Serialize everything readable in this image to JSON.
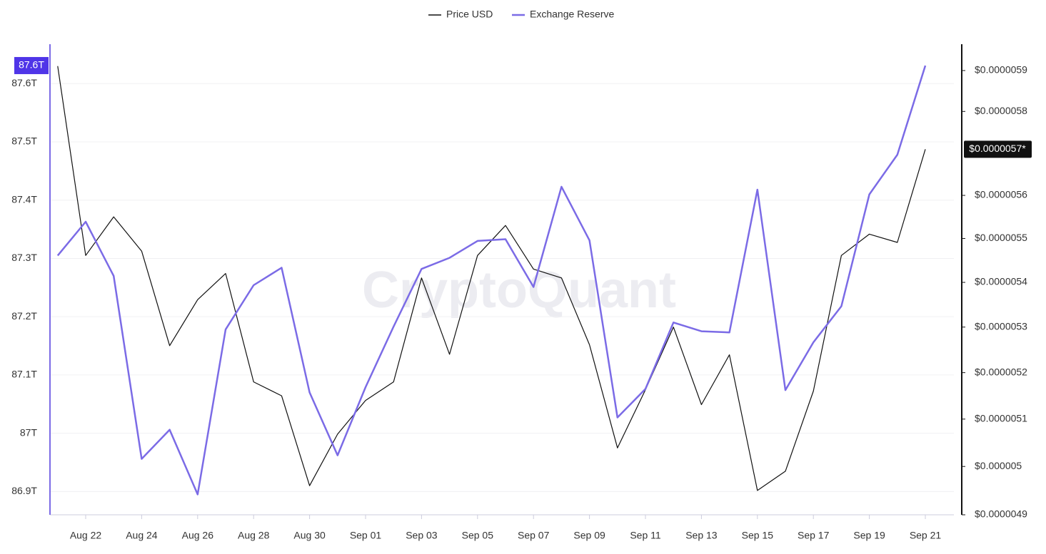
{
  "chart_data": {
    "type": "line",
    "watermark": "CryptoQuant",
    "categories": [
      null,
      "Aug 22",
      null,
      "Aug 24",
      null,
      "Aug 26",
      null,
      "Aug 28",
      null,
      "Aug 30",
      null,
      "Sep 01",
      null,
      "Sep 03",
      null,
      "Sep 05",
      null,
      "Sep 07",
      null,
      "Sep 09",
      null,
      "Sep 11",
      null,
      "Sep 13",
      null,
      "Sep 15",
      null,
      "Sep 17",
      null,
      "Sep 19",
      null,
      "Sep 21"
    ],
    "series": [
      {
        "name": "Price USD",
        "color": "#111111",
        "axis": "y2",
        "values": [
          5.911e-06,
          5.461e-06,
          5.55e-06,
          5.471e-06,
          5.259e-06,
          5.361e-06,
          5.42e-06,
          5.18e-06,
          5.15e-06,
          4.96e-06,
          5.068e-06,
          5.14e-06,
          5.18e-06,
          5.41e-06,
          5.24e-06,
          5.461e-06,
          5.53e-06,
          5.43e-06,
          5.41e-06,
          5.261e-06,
          5.039e-06,
          5.163e-06,
          5.3e-06,
          5.131e-06,
          5.239e-06,
          4.95e-06,
          4.99e-06,
          5.16e-06,
          5.461e-06,
          5.51e-06,
          5.491e-06,
          5.709e-06
        ]
      },
      {
        "name": "Exchange Reserve",
        "color": "#7b6be6",
        "axis": "y",
        "values": [
          87.305,
          87.363,
          87.27,
          86.956,
          87.006,
          86.895,
          87.178,
          87.254,
          87.284,
          87.07,
          86.962,
          87.079,
          87.183,
          87.282,
          87.301,
          87.33,
          87.333,
          87.251,
          87.423,
          87.331,
          87.027,
          87.076,
          87.19,
          87.175,
          87.173,
          87.418,
          87.074,
          87.156,
          87.218,
          87.41,
          87.478,
          87.631
        ]
      }
    ],
    "ylim": [
      86.86,
      87.664
    ],
    "yticks": [
      {
        "value": 86.9,
        "label": "86.9T"
      },
      {
        "value": 87.0,
        "label": "87T"
      },
      {
        "value": 87.1,
        "label": "87.1T"
      },
      {
        "value": 87.2,
        "label": "87.2T"
      },
      {
        "value": 87.3,
        "label": "87.3T"
      },
      {
        "value": 87.4,
        "label": "87.4T"
      },
      {
        "value": 87.5,
        "label": "87.5T"
      },
      {
        "value": 87.6,
        "label": "87.6T"
      }
    ],
    "y_marker_label": "87.6T",
    "y2lim": [
      4.9e-06,
      5.96e-06
    ],
    "y2scale": "log",
    "y2ticks": [
      {
        "value": 4.9e-06,
        "label": "$0.0000049"
      },
      {
        "value": 5e-06,
        "label": "$0.000005"
      },
      {
        "value": 5.1e-06,
        "label": "$0.0000051"
      },
      {
        "value": 5.2e-06,
        "label": "$0.0000052"
      },
      {
        "value": 5.3e-06,
        "label": "$0.0000053"
      },
      {
        "value": 5.4e-06,
        "label": "$0.0000054"
      },
      {
        "value": 5.5e-06,
        "label": "$0.0000055"
      },
      {
        "value": 5.6e-06,
        "label": "$0.0000056"
      },
      {
        "value": 5.8e-06,
        "label": "$0.0000058"
      },
      {
        "value": 5.9e-06,
        "label": "$0.0000059"
      }
    ],
    "y2_marker_label": "$0.0000057*",
    "grid": true,
    "legend": "top"
  }
}
